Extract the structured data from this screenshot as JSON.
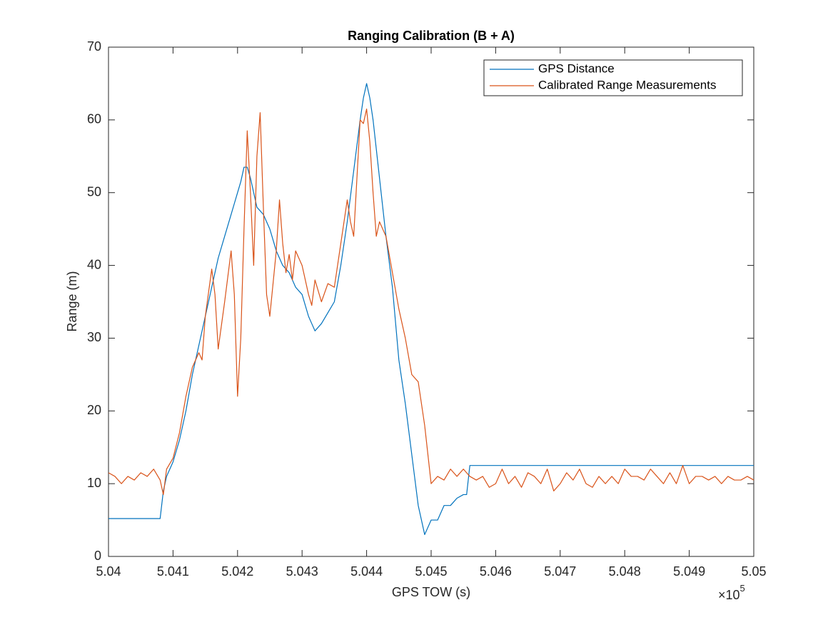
{
  "chart_data": {
    "type": "line",
    "title": "Ranging Calibration (B + A)",
    "x_label": "GPS TOW (s)",
    "y_label": "Range (m)",
    "x_multiplier": {
      "base": "×10",
      "exponent": "5"
    },
    "x": [
      5.04,
      5.0401,
      5.0402,
      5.0403,
      5.0404,
      5.0405,
      5.0406,
      5.0407,
      5.0408,
      5.04085,
      5.0409,
      5.041,
      5.0411,
      5.0412,
      5.0413,
      5.0414,
      5.04145,
      5.0415,
      5.0416,
      5.04165,
      5.0417,
      5.0418,
      5.0419,
      5.04195,
      5.042,
      5.04205,
      5.0421,
      5.04215,
      5.0422,
      5.04225,
      5.0423,
      5.04235,
      5.0424,
      5.04245,
      5.0425,
      5.0426,
      5.04265,
      5.0427,
      5.04275,
      5.0428,
      5.04285,
      5.0429,
      5.043,
      5.0431,
      5.04315,
      5.0432,
      5.0433,
      5.0434,
      5.0435,
      5.0436,
      5.0437,
      5.04375,
      5.0438,
      5.0439,
      5.04395,
      5.044,
      5.04405,
      5.0441,
      5.04415,
      5.0442,
      5.0443,
      5.0444,
      5.0445,
      5.0446,
      5.0447,
      5.0448,
      5.0449,
      5.045,
      5.0451,
      5.0452,
      5.0453,
      5.0454,
      5.0455,
      5.04555,
      5.0456,
      5.0457,
      5.0458,
      5.0459,
      5.046,
      5.0461,
      5.0462,
      5.0463,
      5.0464,
      5.0465,
      5.0466,
      5.0467,
      5.0468,
      5.0469,
      5.047,
      5.0471,
      5.0472,
      5.0473,
      5.0474,
      5.0475,
      5.0476,
      5.0477,
      5.0478,
      5.0479,
      5.048,
      5.0481,
      5.0482,
      5.0483,
      5.0484,
      5.0485,
      5.0486,
      5.0487,
      5.0488,
      5.0489,
      5.049,
      5.0491,
      5.0492,
      5.0493,
      5.0494,
      5.0495,
      5.0496,
      5.0497,
      5.0498,
      5.0499,
      5.05
    ],
    "series": [
      {
        "name": "GPS Distance",
        "color": "#0072bd",
        "values": [
          5.2,
          5.2,
          5.2,
          5.2,
          5.2,
          5.2,
          5.2,
          5.2,
          5.2,
          9,
          11,
          13,
          16,
          20,
          25,
          29,
          31,
          33,
          37,
          39,
          41,
          44,
          47,
          48.5,
          50,
          51.5,
          53.5,
          53.5,
          52,
          50,
          48,
          47.5,
          47,
          46,
          45,
          42,
          41,
          40,
          39.5,
          39,
          38,
          37,
          36,
          33,
          32,
          31,
          32,
          33.5,
          35,
          40,
          46,
          49.5,
          53,
          60,
          63,
          65,
          63,
          60,
          56,
          52,
          44,
          37,
          27,
          21,
          14,
          7,
          3,
          5,
          5,
          7,
          7,
          8,
          8.5,
          8.5,
          12.5,
          12.5,
          12.5,
          12.5,
          12.5,
          12.5,
          12.5,
          12.5,
          12.5,
          12.5,
          12.5,
          12.5,
          12.5,
          12.5,
          12.5,
          12.5,
          12.5,
          12.5,
          12.5,
          12.5,
          12.5,
          12.5,
          12.5,
          12.5,
          12.5,
          12.5,
          12.5,
          12.5,
          12.5,
          12.5,
          12.5,
          12.5,
          12.5,
          12.5,
          12.5,
          12.5,
          12.5,
          12.5,
          12.5,
          12.5,
          12.5,
          12.5,
          12.5,
          12.5,
          12.5
        ]
      },
      {
        "name": "Calibrated Range Measurements",
        "color": "#d95319",
        "values": [
          11.5,
          11,
          10,
          11,
          10.5,
          11.5,
          11,
          12,
          10.5,
          8.5,
          12,
          13.5,
          17,
          22,
          26,
          28,
          27,
          33,
          39.5,
          36,
          28.5,
          35,
          42,
          36,
          22,
          30,
          45,
          58.5,
          50,
          40,
          55,
          61,
          48,
          36,
          33,
          42,
          49,
          43,
          39,
          41.5,
          38,
          42,
          40,
          36,
          34.5,
          38,
          35,
          37.5,
          37,
          43,
          49,
          46,
          44,
          60,
          59.5,
          61.5,
          57,
          50,
          44,
          46,
          44,
          39,
          34,
          30,
          25,
          24,
          18,
          10,
          11,
          10.5,
          12,
          11,
          12,
          11.5,
          11,
          10.5,
          11,
          9.5,
          10,
          12,
          10,
          11,
          9.5,
          11.5,
          11,
          10,
          12,
          9,
          10,
          11.5,
          10.5,
          12,
          10,
          9.5,
          11,
          10,
          11,
          10,
          12,
          11,
          11,
          10.5,
          12,
          11,
          10,
          11.5,
          10,
          12.5,
          10,
          11,
          11,
          10.5,
          11,
          10,
          11,
          10.5,
          10.5,
          11,
          10.5
        ]
      }
    ],
    "xlim": [
      5.04,
      5.05
    ],
    "xticks": [
      5.04,
      5.041,
      5.042,
      5.043,
      5.044,
      5.045,
      5.046,
      5.047,
      5.048,
      5.049,
      5.05
    ],
    "ylim": [
      0,
      70
    ],
    "yticks": [
      0,
      10,
      20,
      30,
      40,
      50,
      60,
      70
    ],
    "legend": "upper right",
    "grid": false
  }
}
